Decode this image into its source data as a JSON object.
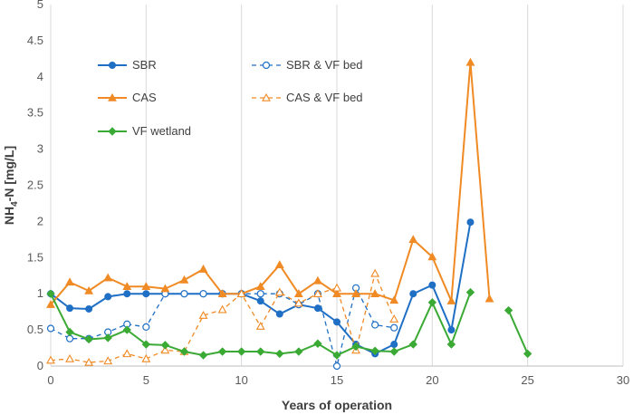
{
  "chart_data": {
    "type": "line",
    "title": "",
    "xlabel": "Years of operation",
    "ylabel_main": "NH",
    "ylabel_sub": "4",
    "ylabel_rest": "-N [mg/L]",
    "xlim": [
      0,
      30
    ],
    "ylim": [
      0,
      5
    ],
    "xticks": [
      0,
      5,
      10,
      15,
      20,
      25,
      30
    ],
    "yticks": [
      0,
      0.5,
      1,
      1.5,
      2,
      2.5,
      3,
      3.5,
      4,
      4.5,
      5
    ],
    "grid": "vertical",
    "series": [
      {
        "name": "SBR",
        "color": "#1f6fc5",
        "dash": false,
        "marker": "circle-filled",
        "x": [
          0,
          1,
          2,
          3,
          4,
          5,
          6,
          7,
          8,
          9,
          10,
          11,
          12,
          13,
          14,
          15,
          16,
          17,
          18,
          19,
          20,
          21,
          22
        ],
        "values": [
          1.0,
          0.8,
          0.79,
          0.96,
          1.0,
          1.0,
          1.0,
          1.0,
          1.0,
          1.0,
          1.0,
          0.9,
          0.72,
          0.85,
          0.8,
          0.61,
          0.3,
          0.17,
          0.3,
          1.0,
          1.12,
          0.5,
          1.99
        ]
      },
      {
        "name": "SBR & VF bed",
        "color": "#1f6fc5",
        "dash": true,
        "marker": "circle-open",
        "x": [
          0,
          1,
          2,
          3,
          4,
          5,
          6,
          7,
          8,
          9,
          10,
          11,
          12,
          13,
          14,
          15,
          16,
          17,
          18
        ],
        "values": [
          0.52,
          0.38,
          0.38,
          0.47,
          0.58,
          0.54,
          1.0,
          1.0,
          1.0,
          1.0,
          1.0,
          1.0,
          1.0,
          0.85,
          1.0,
          0.0,
          1.08,
          0.57,
          0.53
        ]
      },
      {
        "name": "CAS",
        "color": "#f08a24",
        "dash": false,
        "marker": "triangle-filled",
        "x": [
          0,
          1,
          2,
          3,
          4,
          5,
          6,
          7,
          8,
          9,
          10,
          11,
          12,
          13,
          14,
          15,
          16,
          17,
          18,
          19,
          20,
          21,
          22,
          23
        ],
        "values": [
          0.85,
          1.16,
          1.04,
          1.22,
          1.1,
          1.1,
          1.07,
          1.19,
          1.34,
          1.0,
          1.0,
          1.1,
          1.4,
          1.0,
          1.18,
          1.0,
          1.0,
          1.0,
          0.91,
          1.75,
          1.51,
          0.9,
          4.2,
          0.93
        ]
      },
      {
        "name": "CAS & VF bed",
        "color": "#f08a24",
        "dash": true,
        "marker": "triangle-open",
        "x": [
          0,
          1,
          2,
          3,
          4,
          5,
          6,
          7,
          8,
          9,
          10,
          11,
          12,
          13,
          14,
          15,
          16,
          17,
          18
        ],
        "values": [
          0.08,
          0.1,
          0.05,
          0.07,
          0.17,
          0.1,
          0.22,
          0.2,
          0.7,
          0.78,
          1.0,
          0.55,
          1.02,
          0.87,
          1.0,
          1.08,
          0.22,
          1.28,
          0.65
        ]
      },
      {
        "name": "VF wetland",
        "color": "#3aaa35",
        "dash": false,
        "marker": "diamond-filled",
        "x": [
          0,
          1,
          2,
          3,
          4,
          5,
          6,
          7,
          8,
          9,
          10,
          11,
          12,
          13,
          14,
          15,
          16,
          17,
          18,
          19,
          20,
          21,
          22,
          24,
          25
        ],
        "values": [
          1.0,
          0.47,
          0.37,
          0.39,
          0.5,
          0.3,
          0.29,
          0.2,
          0.15,
          0.2,
          0.2,
          0.2,
          0.17,
          0.2,
          0.31,
          0.15,
          0.27,
          0.21,
          0.2,
          0.3,
          0.88,
          0.3,
          1.02,
          0.77,
          0.17
        ],
        "breaks_before_index": [
          23
        ]
      }
    ],
    "legend": {
      "placement": "top-left",
      "columns": 2
    }
  }
}
